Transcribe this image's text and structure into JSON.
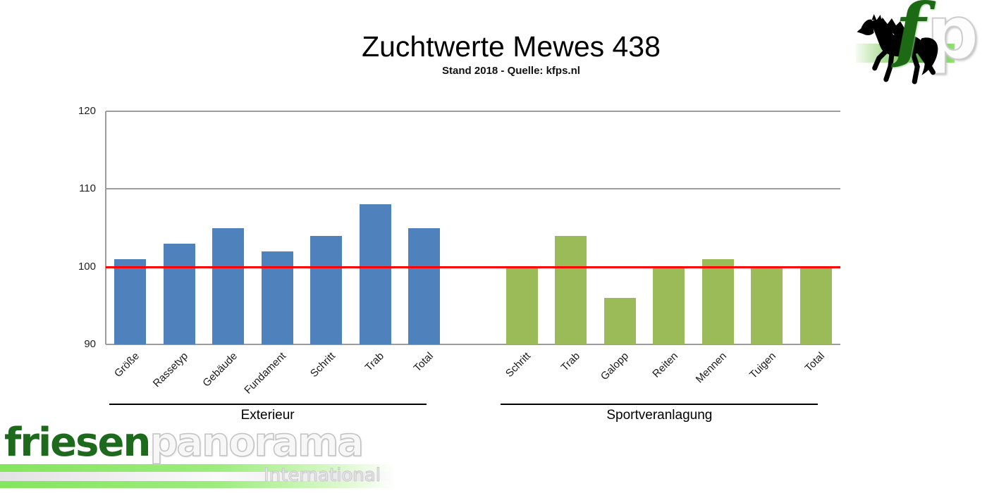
{
  "title": {
    "text": "Zuchtwerte Mewes 438",
    "subtitle": "Stand 2018 - Quelle: kfps.nl"
  },
  "chart_data": {
    "type": "bar",
    "title": "Zuchtwerte Mewes 438",
    "subtitle": "Stand 2018 - Quelle: kfps.nl",
    "ylim": [
      90,
      120
    ],
    "yticks": [
      90,
      100,
      110,
      120
    ],
    "grid": true,
    "legend_position": "none",
    "gridline_color": "#9c9c9c",
    "axis_color": "#9c9c9c",
    "reference_line": {
      "value": 100,
      "color": "#fe0000"
    },
    "groups": [
      {
        "label": "Exterieur",
        "color": "#4f81bd",
        "categories": [
          "Größe",
          "Rassetyp",
          "Gebäude",
          "Fundament",
          "Schritt",
          "Trab",
          "Total"
        ],
        "values": [
          101,
          103,
          105,
          102,
          104,
          108,
          105
        ]
      },
      {
        "label": "Sportveranlagung",
        "color": "#9bbb59",
        "categories": [
          "Schritt",
          "Trab",
          "Galopp",
          "Reiten",
          "Mennen",
          "Tuigen",
          "Total"
        ],
        "values": [
          100,
          104,
          96,
          100,
          101,
          100,
          100
        ]
      }
    ]
  },
  "logo": {
    "f": "f",
    "p": "p"
  },
  "watermark": {
    "brand_green": "friesen",
    "brand_light": "panorama",
    "tagline": "International"
  }
}
